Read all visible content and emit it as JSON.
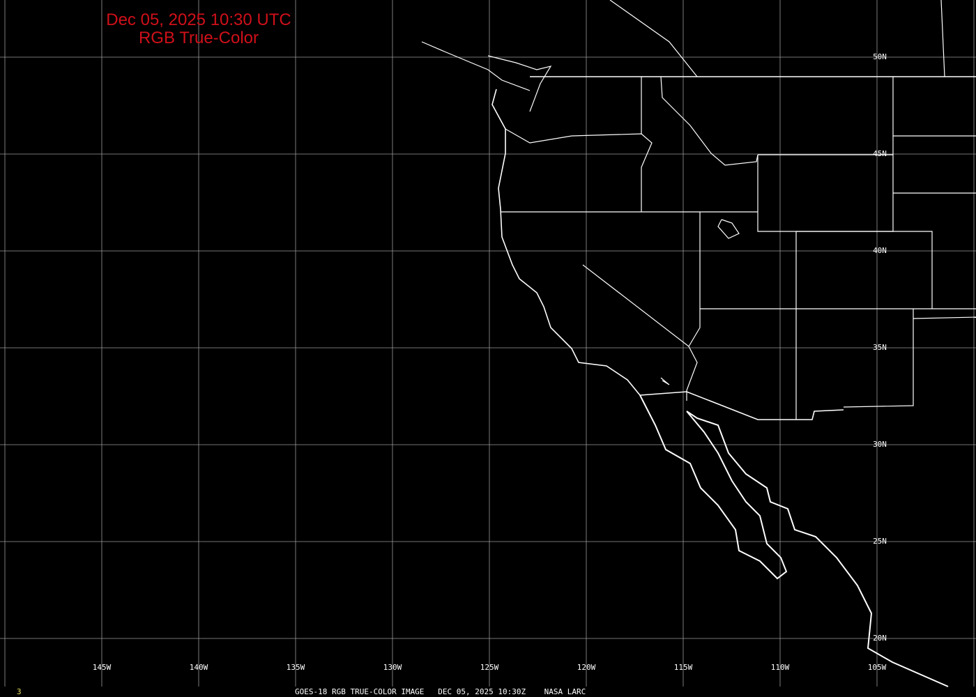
{
  "title": {
    "line1": "Dec 05, 2025 10:30 UTC",
    "line2": "RGB True-Color"
  },
  "footer": {
    "caption": "GOES-18 RGB TRUE-COLOR IMAGE   DEC 05, 2025 10:30Z    NASA LARC",
    "frame_number": "3"
  },
  "grid": {
    "longitudes": [
      "145W",
      "140W",
      "135W",
      "130W",
      "125W",
      "120W",
      "115W",
      "110W",
      "105W"
    ],
    "latitudes": [
      "50N",
      "45N",
      "40N",
      "35N",
      "30N",
      "25N",
      "20N"
    ]
  },
  "colors": {
    "title": "#d0101a",
    "grid": "#9a9a9a",
    "coast": "#ffffff",
    "frame_number": "#e8e060"
  }
}
